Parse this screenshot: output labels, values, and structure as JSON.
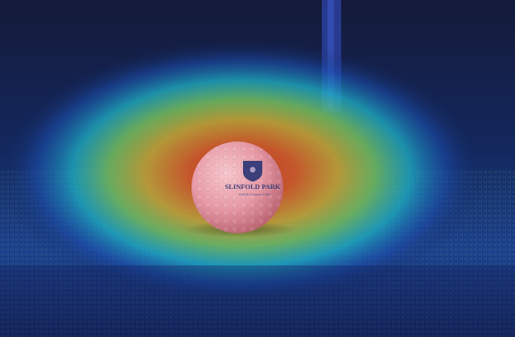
{
  "image": {
    "subject": "golf-ball",
    "overlay": "attention-heatmap",
    "colors": {
      "background_dark": "#0b1a3c",
      "heat_blue": "#1e3f9a",
      "heat_cyan": "#1fb5c9",
      "heat_green": "#5ec46a",
      "heat_yellow": "#e0c437",
      "heat_orange": "#e07a22",
      "heat_red": "#d2402a",
      "ball_tint": "#e89aa8",
      "logo_navy": "#3b3f7a"
    }
  },
  "ball": {
    "brand_line1": "SLINFOLD PARK",
    "brand_line2": "Golf & Country Club"
  }
}
